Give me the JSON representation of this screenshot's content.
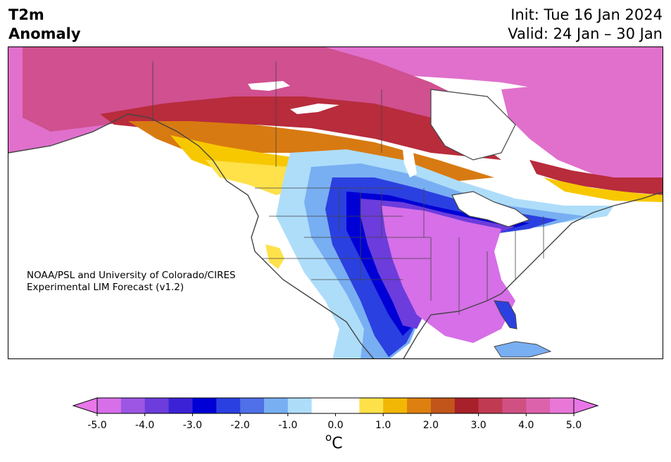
{
  "header": {
    "title_line1": "T2m",
    "title_line2": "Anomaly",
    "init_line": "Init: Tue 16 Jan 2024",
    "valid_line": "Valid: 24 Jan – 30 Jan"
  },
  "credit": {
    "line1": "NOAA/PSL and University of Colorado/CIRES",
    "line2": "Experimental LIM Forecast (v1.2)"
  },
  "colorbar": {
    "unit_base": "C",
    "unit_superscript": "o",
    "ticks": [
      "-5.0",
      "-4.0",
      "-3.0",
      "-2.0",
      "-1.0",
      "0.0",
      "1.0",
      "2.0",
      "3.0",
      "4.0",
      "5.0"
    ],
    "levels": [
      -5.0,
      -4.5,
      -4.0,
      -3.5,
      -3.0,
      -2.5,
      -2.0,
      -1.5,
      -1.0,
      -0.5,
      0.5,
      1.0,
      1.5,
      2.0,
      2.5,
      3.0,
      3.5,
      4.0,
      4.5,
      5.0
    ],
    "colors": [
      "#d66fe8",
      "#9d56e3",
      "#6c3cdc",
      "#3b22d6",
      "#0000d6",
      "#2b40e0",
      "#4f70e8",
      "#78aef2",
      "#aeddfa",
      "#ffffff",
      "#ffe14a",
      "#f2b705",
      "#dd8010",
      "#c2551a",
      "#a8202a",
      "#c03a52",
      "#d05082",
      "#dc62ac",
      "#e877d8"
    ],
    "under_color": "#e877e8",
    "over_color": "#e877e8"
  },
  "map": {
    "region": "North America",
    "colors": {
      "ocean": "#ffffff",
      "coast": "#444444",
      "strong_warm": "#e877d8",
      "warm_pink": "#d8609e",
      "warm_red": "#b82c3c",
      "orange": "#d87a12",
      "yellow": "#f7c800",
      "light_yellow": "#ffe14a",
      "neutral": "#ffffff",
      "light_blue": "#aeddfa",
      "mid_blue": "#78aef2",
      "blue": "#3b5ce6",
      "deep_blue": "#0000d6",
      "purple": "#6c3cdc",
      "violet": "#d66fe8"
    }
  }
}
